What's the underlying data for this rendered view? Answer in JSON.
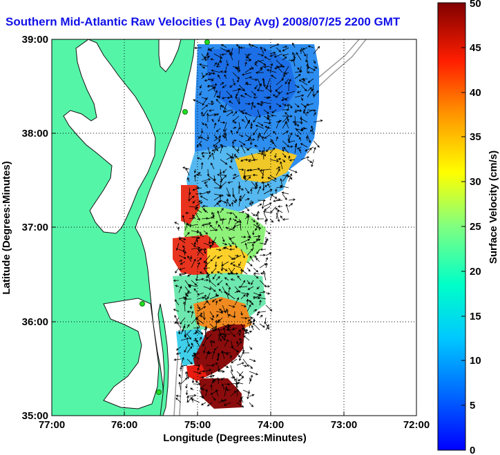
{
  "title": "Southern Mid-Atlantic Raw Velocities (1 Day Avg) 2008/07/25 2200 GMT",
  "x_axis": {
    "label": "Longitude (Degrees:Minutes)",
    "ticks": [
      "77:00",
      "76:00",
      "75:00",
      "74:00",
      "73:00",
      "72:00"
    ]
  },
  "y_axis": {
    "label": "Latitude (Degrees:Minutes)",
    "ticks": [
      "39:00",
      "38:00",
      "37:00",
      "36:00",
      "35:00"
    ]
  },
  "colorbar": {
    "label": "Surface Velocity (cm/s)",
    "ticks": [
      "50",
      "45",
      "40",
      "35",
      "30",
      "25",
      "20",
      "15",
      "10",
      "5",
      "0"
    ],
    "min": 0,
    "max": 50,
    "colormap": "jet"
  },
  "colors": {
    "title": "#1010e8",
    "land": "#55f5a8",
    "water": "#ffffff",
    "coastline": "#111111",
    "bathymetry": "#9a9a9a",
    "site_marker": "#22dd22",
    "arrow": "#000000"
  },
  "grid": "dotted"
}
